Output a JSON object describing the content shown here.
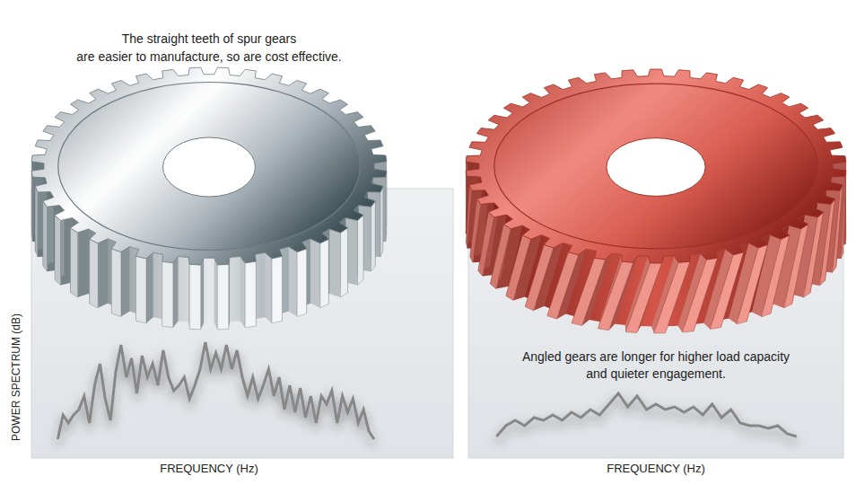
{
  "chart_data": [
    {
      "type": "line",
      "annotations": [
        "The straight teeth of spur gears",
        "are easier to manufacture, so are cost effective."
      ],
      "xlabel": "FREQUENCY (Hz)",
      "ylabel": "POWER SPECTRUM (dB)",
      "x": [
        5,
        6,
        7,
        8,
        9,
        10,
        11,
        12,
        13,
        14,
        15,
        16,
        17,
        18,
        19,
        20,
        21,
        22,
        23,
        24,
        25,
        26,
        27,
        28,
        29,
        30,
        31,
        32,
        33,
        34,
        35,
        36,
        37,
        38,
        39,
        40,
        41,
        42,
        43,
        44,
        45,
        46,
        47,
        48,
        49,
        50,
        51,
        52,
        53,
        54,
        55,
        56,
        57,
        58,
        59,
        60,
        61,
        62,
        63,
        64,
        65
      ],
      "values": [
        7,
        16,
        13,
        16,
        18,
        23,
        13,
        27,
        35,
        22,
        14,
        32,
        42,
        30,
        37,
        24,
        38,
        30,
        35,
        27,
        40,
        30,
        25,
        27,
        30,
        22,
        27,
        33,
        43,
        33,
        39,
        33,
        42,
        33,
        40,
        30,
        23,
        30,
        22,
        27,
        33,
        23,
        30,
        18,
        27,
        17,
        26,
        15,
        23,
        13,
        23,
        20,
        25,
        13,
        23,
        17,
        22,
        13,
        18,
        10,
        7
      ],
      "color": "#878787",
      "xlim": [
        0,
        80
      ],
      "ylim": [
        0,
        100
      ],
      "tick_labels": false
    },
    {
      "type": "line",
      "annotations": [
        "Angled gears are longer for higher load capacity",
        "and quieter engagement."
      ],
      "xlabel": "FREQUENCY (Hz)",
      "x": [
        6,
        8,
        10,
        12,
        14,
        16,
        18,
        20,
        22,
        24,
        26,
        28,
        30,
        32,
        34,
        36,
        38,
        40,
        42,
        44,
        46,
        48,
        50,
        52,
        54,
        56,
        58,
        60,
        62,
        64,
        66,
        68,
        70
      ],
      "values": [
        8,
        12,
        14,
        12,
        15,
        14,
        16,
        14,
        17,
        15,
        18,
        16,
        20,
        24,
        19,
        23,
        18,
        20,
        18,
        19,
        17,
        19,
        16,
        20,
        15,
        18,
        13,
        12,
        12,
        11,
        12,
        9,
        8
      ],
      "color": "#878787",
      "xlim": [
        0,
        80
      ],
      "ylim": [
        0,
        100
      ],
      "tick_labels": false
    }
  ]
}
